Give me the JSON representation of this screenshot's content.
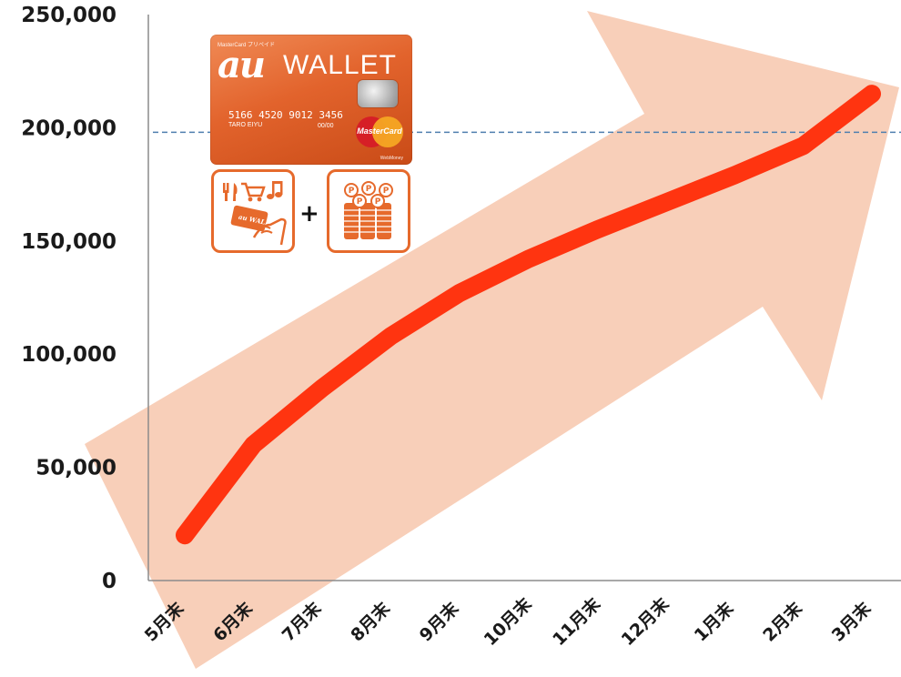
{
  "chart_data": {
    "type": "line",
    "title": "",
    "xlabel": "",
    "ylabel": "",
    "categories": [
      "5月末",
      "6月末",
      "7月末",
      "8月末",
      "9月末",
      "10月末",
      "11月末",
      "12月末",
      "1月末",
      "2月末",
      "3月末"
    ],
    "series": [
      {
        "values": [
          20000,
          60000,
          85000,
          108000,
          127000,
          142000,
          155000,
          167000,
          179000,
          192000,
          215000
        ]
      }
    ],
    "y_ticks": [
      "0",
      "50,000",
      "100,000",
      "150,000",
      "200,000",
      "250,000"
    ],
    "ylim": [
      0,
      250000
    ],
    "reference_line": {
      "value": 198000,
      "style": "dashed"
    },
    "grid": false,
    "legend": "none",
    "colors": {
      "line": "#ff3410",
      "arrow": "#f7c7ad",
      "reference": "#4f7fae",
      "axis": "#8c8c8c"
    }
  },
  "card": {
    "brand_small": "MasterCard プリペイド",
    "logo_au": "au",
    "logo_wallet": "WALLET",
    "number": "5166 4520 9012 3456",
    "holder": "TARO EIYU",
    "expiry": "00/00",
    "network": "MasterCard",
    "issuer": "WebMoney",
    "accent": "#e66a2c"
  },
  "icons": {
    "shop": "shopping-usage-icon",
    "points": "points-coins-icon",
    "plus": "+"
  }
}
